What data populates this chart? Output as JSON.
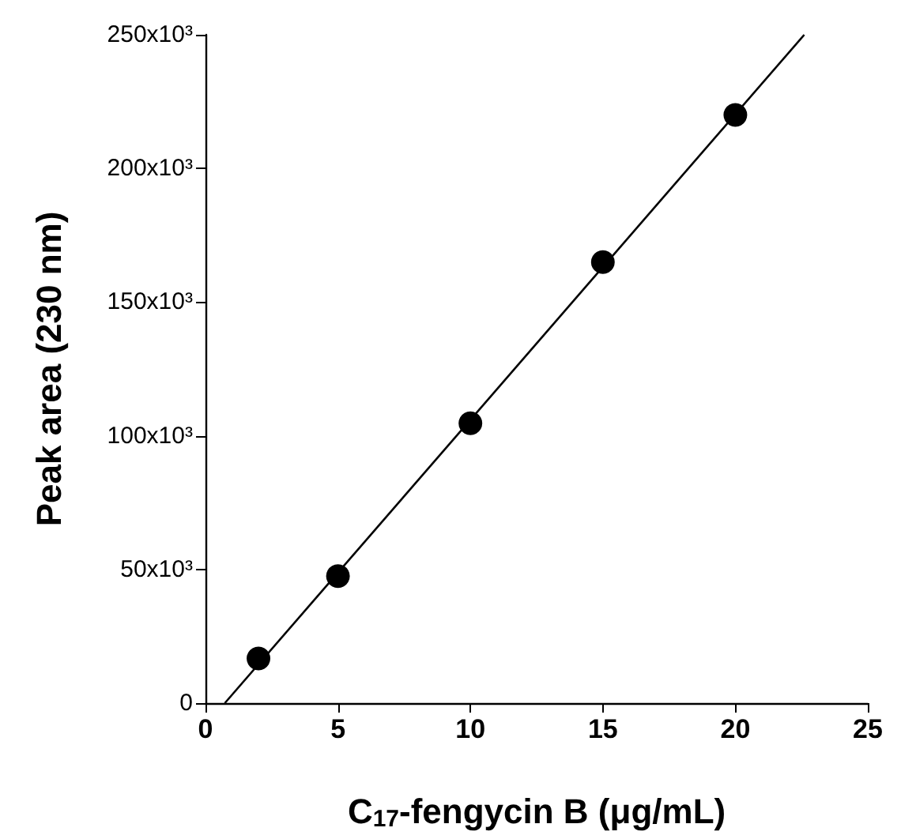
{
  "chart_data": {
    "type": "scatter",
    "xlabel": "C$_{17}$-fengycin B (μg/mL)",
    "ylabel": "Peak area (230 nm)",
    "xlim": [
      0,
      25
    ],
    "xticks": [
      0,
      5,
      10,
      15,
      20,
      25
    ],
    "ylim": [
      0,
      250000
    ],
    "yticks": [
      {
        "value": 0,
        "label": "0"
      },
      {
        "value": 50000,
        "label": "50x10³"
      },
      {
        "value": 100000,
        "label": "100x10³"
      },
      {
        "value": 150000,
        "label": "150x10³"
      },
      {
        "value": 200000,
        "label": "200x10³"
      },
      {
        "value": 250000,
        "label": "250x10³"
      }
    ],
    "grid": false,
    "marker": "circle",
    "series": [
      {
        "color": "#000000",
        "x": [
          2,
          5,
          10,
          15,
          20
        ],
        "values": [
          16700,
          47500,
          104700,
          165000,
          220000
        ]
      },
      {
        "type": "line",
        "color": "#000000",
        "marker": "none",
        "line_style": "solid",
        "x": [
          0.73,
          22.6
        ],
        "values": [
          0,
          250000
        ]
      }
    ]
  }
}
